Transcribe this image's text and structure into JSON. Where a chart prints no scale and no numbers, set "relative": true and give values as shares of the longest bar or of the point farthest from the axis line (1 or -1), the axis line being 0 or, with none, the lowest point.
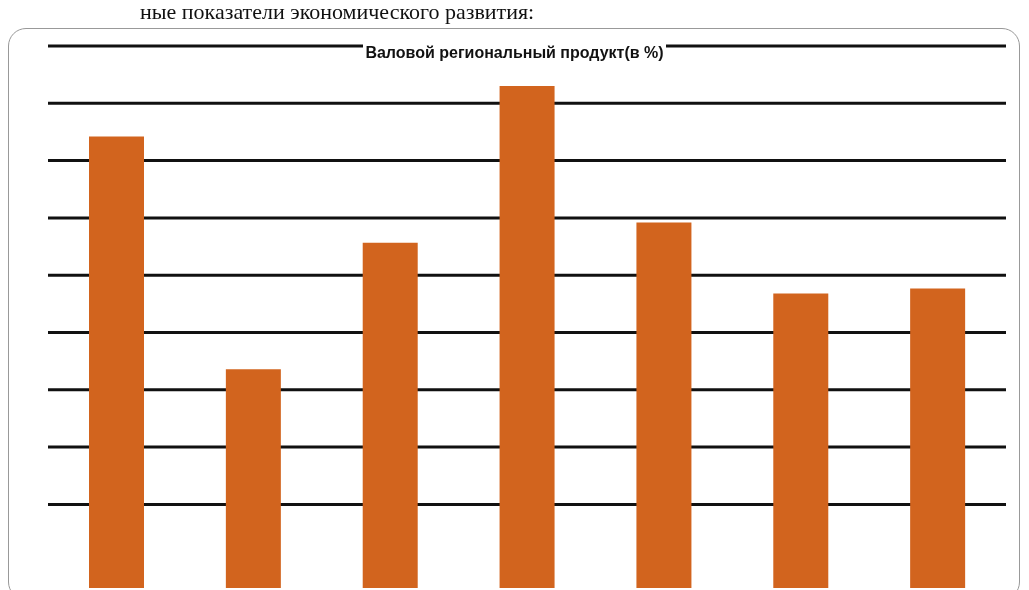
{
  "chart_data": {
    "type": "bar",
    "title": "Валовой региональный продукт(в %)",
    "annotations": [
      "ные показатели экономического развития:"
    ],
    "categories": [
      null,
      null,
      null,
      null,
      null,
      null,
      null
    ],
    "values": [
      0.9,
      0.44,
      0.69,
      1,
      0.73,
      0.59,
      0.6
    ],
    "color": "#d2641e",
    "relative": true,
    "grid": "y"
  }
}
